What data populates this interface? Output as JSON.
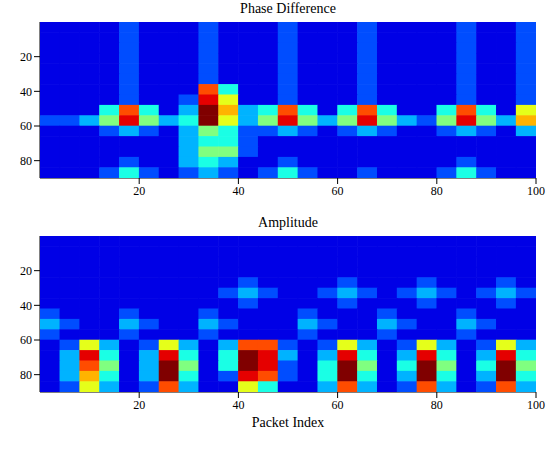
{
  "chart_data": [
    {
      "type": "heatmap",
      "title": "Phase Difference",
      "xlim": [
        0,
        100
      ],
      "ylim": [
        0,
        90
      ],
      "xticks": [
        20,
        40,
        60,
        80,
        100
      ],
      "yticks": [
        20,
        40,
        60,
        80
      ],
      "x": [
        2,
        6,
        10,
        14,
        18,
        22,
        26,
        30,
        34,
        38,
        42,
        46,
        50,
        54,
        58,
        62,
        66,
        70,
        74,
        78,
        82,
        86,
        90,
        94,
        98
      ],
      "y": [
        3,
        9,
        15,
        21,
        27,
        33,
        39,
        45,
        51,
        57,
        63,
        69,
        75,
        81,
        87
      ],
      "zlim": [
        0,
        10
      ],
      "cells": [
        [
          1,
          1,
          1,
          1,
          2,
          1,
          1,
          1,
          2,
          1,
          1,
          1,
          2,
          1,
          1,
          1,
          2,
          1,
          1,
          1,
          1,
          2,
          1,
          1,
          2
        ],
        [
          1,
          1,
          1,
          1,
          2,
          1,
          1,
          1,
          2,
          1,
          1,
          1,
          2,
          1,
          1,
          1,
          2,
          1,
          1,
          1,
          1,
          2,
          1,
          1,
          2
        ],
        [
          1,
          1,
          1,
          1,
          2,
          1,
          1,
          1,
          2,
          1,
          1,
          1,
          2,
          1,
          1,
          1,
          2,
          1,
          1,
          1,
          1,
          2,
          1,
          1,
          2
        ],
        [
          1,
          1,
          1,
          1,
          2,
          1,
          1,
          1,
          2,
          1,
          1,
          1,
          2,
          1,
          1,
          1,
          2,
          1,
          1,
          1,
          1,
          2,
          1,
          1,
          2
        ],
        [
          1,
          1,
          1,
          1,
          2,
          1,
          1,
          1,
          2,
          1,
          1,
          1,
          2,
          1,
          1,
          1,
          2,
          1,
          1,
          1,
          1,
          2,
          1,
          1,
          2
        ],
        [
          1,
          1,
          1,
          1,
          2,
          1,
          1,
          1,
          2,
          1,
          1,
          1,
          2,
          1,
          1,
          1,
          2,
          1,
          1,
          1,
          1,
          2,
          1,
          1,
          2
        ],
        [
          1,
          1,
          1,
          1,
          2,
          1,
          1,
          1,
          8,
          4,
          1,
          1,
          2,
          1,
          1,
          1,
          2,
          1,
          1,
          1,
          1,
          2,
          1,
          1,
          2
        ],
        [
          1,
          1,
          1,
          1,
          2,
          1,
          1,
          2,
          9,
          6,
          1,
          1,
          2,
          1,
          1,
          1,
          2,
          1,
          1,
          1,
          1,
          2,
          1,
          1,
          2
        ],
        [
          1,
          1,
          1,
          4,
          8,
          4,
          1,
          3,
          10,
          7,
          3,
          4,
          8,
          4,
          1,
          4,
          8,
          4,
          1,
          1,
          4,
          8,
          4,
          1,
          6
        ],
        [
          2,
          2,
          3,
          5,
          9,
          5,
          3,
          4,
          10,
          6,
          3,
          5,
          9,
          5,
          3,
          5,
          9,
          5,
          3,
          2,
          5,
          9,
          5,
          3,
          7
        ],
        [
          1,
          1,
          1,
          2,
          3,
          2,
          1,
          3,
          5,
          4,
          2,
          2,
          3,
          2,
          1,
          2,
          3,
          2,
          1,
          1,
          2,
          3,
          2,
          1,
          3
        ],
        [
          1,
          1,
          1,
          1,
          1,
          1,
          1,
          3,
          4,
          4,
          2,
          1,
          1,
          1,
          1,
          1,
          1,
          1,
          1,
          1,
          1,
          1,
          1,
          1,
          1
        ],
        [
          1,
          1,
          1,
          1,
          1,
          1,
          1,
          3,
          5,
          5,
          2,
          1,
          1,
          1,
          1,
          1,
          1,
          1,
          1,
          1,
          1,
          1,
          1,
          1,
          1
        ],
        [
          1,
          1,
          1,
          1,
          2,
          1,
          1,
          3,
          4,
          3,
          1,
          1,
          2,
          1,
          1,
          1,
          1,
          1,
          1,
          1,
          1,
          2,
          1,
          1,
          1
        ],
        [
          1,
          1,
          1,
          2,
          4,
          2,
          1,
          2,
          3,
          2,
          1,
          2,
          4,
          2,
          1,
          1,
          2,
          1,
          1,
          1,
          2,
          4,
          2,
          1,
          1
        ]
      ]
    },
    {
      "type": "heatmap",
      "title": "Amplitude",
      "x_label": "Packet Index",
      "xlim": [
        0,
        100
      ],
      "ylim": [
        0,
        90
      ],
      "xticks": [
        20,
        40,
        60,
        80,
        100
      ],
      "yticks": [
        20,
        40,
        60,
        80
      ],
      "x": [
        2,
        6,
        10,
        14,
        18,
        22,
        26,
        30,
        34,
        38,
        42,
        46,
        50,
        54,
        58,
        62,
        66,
        70,
        74,
        78,
        82,
        86,
        90,
        94,
        98
      ],
      "y": [
        3,
        9,
        15,
        21,
        27,
        33,
        39,
        45,
        51,
        57,
        63,
        69,
        75,
        81,
        87
      ],
      "zlim": [
        0,
        10
      ],
      "cells": [
        [
          1,
          1,
          1,
          1,
          1,
          1,
          1,
          1,
          1,
          1,
          1,
          1,
          1,
          1,
          1,
          1,
          1,
          1,
          1,
          1,
          1,
          1,
          1,
          1,
          1
        ],
        [
          1,
          1,
          1,
          1,
          1,
          1,
          1,
          1,
          1,
          1,
          1,
          1,
          1,
          1,
          1,
          1,
          1,
          1,
          1,
          1,
          1,
          1,
          1,
          1,
          1
        ],
        [
          1,
          1,
          1,
          1,
          1,
          1,
          1,
          1,
          1,
          1,
          1,
          1,
          1,
          1,
          1,
          1,
          1,
          1,
          1,
          1,
          1,
          1,
          1,
          1,
          1
        ],
        [
          1,
          1,
          1,
          1,
          1,
          1,
          1,
          1,
          1,
          1,
          1,
          1,
          1,
          1,
          1,
          1,
          1,
          1,
          1,
          1,
          1,
          1,
          1,
          1,
          1
        ],
        [
          1,
          1,
          1,
          1,
          1,
          1,
          1,
          1,
          1,
          1,
          2,
          1,
          1,
          1,
          1,
          2,
          1,
          1,
          1,
          2,
          1,
          1,
          1,
          2,
          1
        ],
        [
          1,
          1,
          1,
          1,
          1,
          1,
          1,
          1,
          1,
          2,
          3,
          2,
          1,
          1,
          2,
          3,
          2,
          1,
          2,
          3,
          2,
          1,
          2,
          3,
          2
        ],
        [
          1,
          1,
          1,
          1,
          1,
          1,
          1,
          1,
          1,
          1,
          2,
          1,
          1,
          1,
          1,
          2,
          1,
          1,
          1,
          2,
          1,
          1,
          1,
          2,
          1
        ],
        [
          2,
          1,
          1,
          1,
          2,
          1,
          1,
          1,
          2,
          1,
          1,
          1,
          1,
          2,
          1,
          1,
          1,
          2,
          1,
          1,
          1,
          2,
          1,
          1,
          1
        ],
        [
          3,
          2,
          1,
          1,
          3,
          2,
          1,
          1,
          3,
          2,
          1,
          1,
          1,
          3,
          2,
          1,
          1,
          3,
          2,
          1,
          1,
          3,
          2,
          1,
          1
        ],
        [
          2,
          1,
          1,
          1,
          2,
          1,
          1,
          1,
          2,
          1,
          1,
          1,
          1,
          2,
          1,
          1,
          1,
          2,
          1,
          1,
          1,
          2,
          1,
          1,
          1
        ],
        [
          1,
          2,
          6,
          3,
          1,
          2,
          6,
          3,
          1,
          3,
          8,
          8,
          2,
          1,
          2,
          6,
          3,
          1,
          2,
          6,
          3,
          1,
          2,
          6,
          3
        ],
        [
          1,
          3,
          9,
          4,
          1,
          3,
          9,
          4,
          1,
          4,
          10,
          9,
          3,
          1,
          3,
          9,
          4,
          1,
          3,
          9,
          4,
          1,
          3,
          9,
          4
        ],
        [
          1,
          3,
          8,
          5,
          1,
          3,
          10,
          5,
          1,
          4,
          10,
          9,
          2,
          1,
          4,
          10,
          5,
          1,
          4,
          10,
          5,
          1,
          4,
          10,
          5
        ],
        [
          1,
          3,
          7,
          4,
          1,
          3,
          10,
          4,
          1,
          2,
          9,
          8,
          2,
          1,
          4,
          10,
          4,
          1,
          3,
          10,
          4,
          1,
          3,
          10,
          4
        ],
        [
          1,
          2,
          6,
          3,
          1,
          2,
          8,
          3,
          1,
          1,
          6,
          4,
          1,
          1,
          3,
          8,
          3,
          1,
          2,
          8,
          3,
          1,
          2,
          8,
          3
        ]
      ]
    }
  ]
}
